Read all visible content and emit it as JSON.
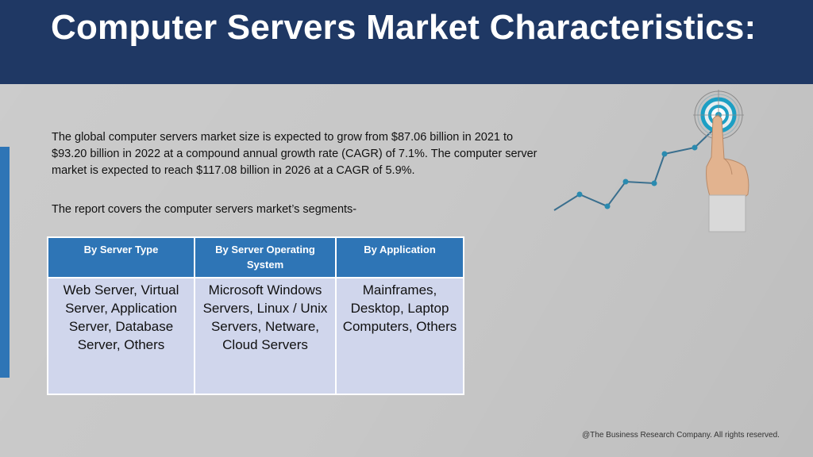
{
  "slide": {
    "title": "Computer Servers Market Characteristics:",
    "paragraph1": "The global computer servers market size is expected to grow from $87.06 billion in 2021 to $93.20 billion in 2022 at a compound annual growth rate (CAGR) of 7.1%. The computer server market is expected to reach $117.08 billion in 2026 at a CAGR of 5.9%.",
    "paragraph2": "The report covers the computer servers market’s segments-",
    "footer": "@The Business Research Company. All rights reserved.",
    "colors": {
      "header_bg": "#1f3864",
      "accent_blue": "#2e75b6",
      "table_cell_bg": "#d0d6ec",
      "background": "#c8c8c8"
    },
    "icons": [
      "target-icon",
      "pointing-hand-icon",
      "growth-line-icon"
    ]
  },
  "table": {
    "headers": [
      "By Server Type",
      "By Server Operating System",
      "By Application"
    ],
    "cells": [
      "Web Server, Virtual Server, Application Server, Database Server, Others",
      "Microsoft Windows Servers, Linux / Unix Servers, Netware, Cloud Servers",
      "Mainframes, Desktop, Laptop Computers, Others"
    ]
  }
}
